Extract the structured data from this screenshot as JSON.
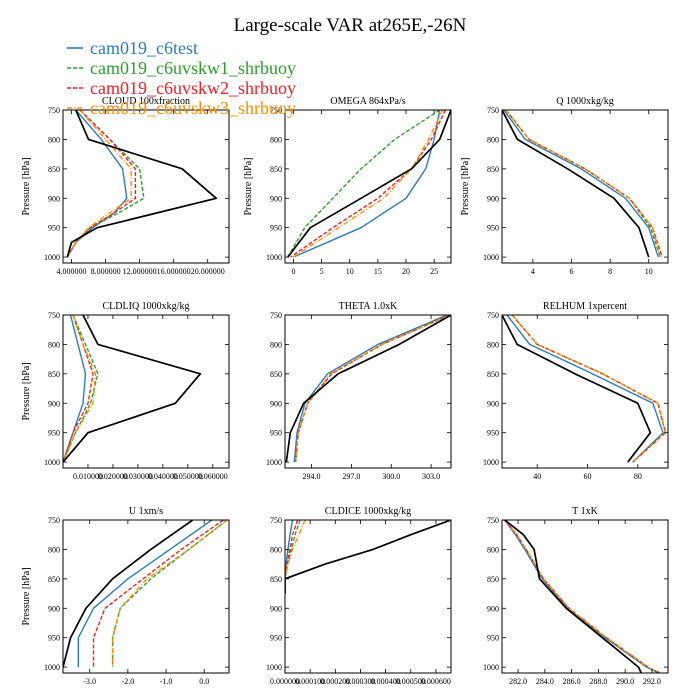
{
  "title": "Large-scale VAR at265E,-26N",
  "colors": {
    "cam019_c6test": "#2a7db8",
    "cam019_c6uvskw1_shrbuoy": "#2ca02c",
    "cam019_c6uvskw2_shrbuoy": "#e8232a",
    "cam019_c6uvskw3_shrbuoy": "#ff8c00",
    "reference": "#000000"
  },
  "legend": [
    {
      "label": "cam019_c6test",
      "color_key": "cam019_c6test",
      "dash": "solid"
    },
    {
      "label": "cam019_c6uvskw1_shrbuoy",
      "color_key": "cam019_c6uvskw1_shrbuoy",
      "dash": "dash"
    },
    {
      "label": "cam019_c6uvskw2_shrbuoy",
      "color_key": "cam019_c6uvskw2_shrbuoy",
      "dash": "dash"
    },
    {
      "label": "cam019_c6uvskw3_shrbuoy",
      "color_key": "cam019_c6uvskw3_shrbuoy",
      "dash": "dashdot"
    }
  ],
  "chart_data": [
    {
      "type": "line",
      "title": "CLOUD 100xfraction",
      "ylabel": "Pressure [hPa]",
      "xlim": [
        0.03,
        0.225
      ],
      "ylim": [
        1010,
        750
      ],
      "xticks": [
        0.04,
        0.08,
        0.12,
        0.16,
        0.2
      ],
      "xtick_labels": [
        "4.000000",
        "8.000000",
        "12.000000",
        "16.000000",
        "20.000000"
      ],
      "yticks": [
        750,
        800,
        850,
        900,
        950,
        1000
      ],
      "y": [
        750,
        800,
        850,
        900,
        925,
        950,
        975,
        1000
      ],
      "series": [
        {
          "name": "cam019_c6test",
          "values": [
            0.045,
            0.075,
            0.1,
            0.105,
            0.09,
            0.065,
            0.045,
            0.035
          ]
        },
        {
          "name": "cam019_c6uvskw1_shrbuoy",
          "values": [
            0.05,
            0.085,
            0.12,
            0.125,
            0.095,
            0.062,
            0.045,
            0.035
          ]
        },
        {
          "name": "cam019_c6uvskw2_shrbuoy",
          "values": [
            0.05,
            0.085,
            0.115,
            0.115,
            0.09,
            0.062,
            0.045,
            0.035
          ]
        },
        {
          "name": "cam019_c6uvskw3_shrbuoy",
          "values": [
            0.05,
            0.08,
            0.11,
            0.11,
            0.085,
            0.06,
            0.045,
            0.035
          ]
        },
        {
          "name": "reference",
          "values": [
            0.045,
            0.06,
            0.17,
            0.21,
            0.14,
            0.07,
            0.04,
            0.035
          ]
        }
      ]
    },
    {
      "type": "line",
      "title": "OMEGA 864xPa/s",
      "ylabel": "Pressure [hPa]",
      "xlim": [
        -1.5,
        28
      ],
      "ylim": [
        1010,
        750
      ],
      "xticks": [
        0,
        5,
        10,
        15,
        20,
        25
      ],
      "xtick_labels": [
        "0",
        "5",
        "10",
        "15",
        "20",
        "25"
      ],
      "yticks": [
        750,
        800,
        850,
        900,
        950,
        1000
      ],
      "y": [
        750,
        800,
        850,
        900,
        950,
        1000
      ],
      "series": [
        {
          "name": "cam019_c6test",
          "values": [
            26,
            25,
            23.5,
            20,
            12,
            0
          ]
        },
        {
          "name": "cam019_c6uvskw1_shrbuoy",
          "values": [
            26,
            18,
            12,
            7,
            2,
            -1
          ]
        },
        {
          "name": "cam019_c6uvskw2_shrbuoy",
          "values": [
            27,
            24.5,
            21,
            15,
            7,
            -0.5
          ]
        },
        {
          "name": "cam019_c6uvskw3_shrbuoy",
          "values": [
            26.5,
            24,
            21,
            16,
            8,
            0
          ]
        },
        {
          "name": "reference",
          "values": [
            28,
            26,
            21,
            12,
            3,
            -1
          ]
        }
      ]
    },
    {
      "type": "line",
      "title": "Q 1000xkg/kg",
      "ylabel": "Pressure [hPa]",
      "xlim": [
        2.4,
        11
      ],
      "ylim": [
        1010,
        750
      ],
      "xticks": [
        4,
        6,
        8,
        10
      ],
      "xtick_labels": [
        "4",
        "6",
        "8",
        "10"
      ],
      "yticks": [
        750,
        800,
        850,
        900,
        950,
        1000
      ],
      "y": [
        750,
        800,
        850,
        900,
        950,
        1000
      ],
      "series": [
        {
          "name": "cam019_c6test",
          "values": [
            2.5,
            3.6,
            6.5,
            8.8,
            10.0,
            10.5
          ]
        },
        {
          "name": "cam019_c6uvskw1_shrbuoy",
          "values": [
            2.6,
            3.8,
            6.7,
            9.0,
            10.1,
            10.6
          ]
        },
        {
          "name": "cam019_c6uvskw2_shrbuoy",
          "values": [
            2.6,
            3.8,
            6.7,
            9.0,
            10.2,
            10.7
          ]
        },
        {
          "name": "cam019_c6uvskw3_shrbuoy",
          "values": [
            2.6,
            3.8,
            6.7,
            9.0,
            10.2,
            10.6
          ]
        },
        {
          "name": "reference",
          "values": [
            2.4,
            3.2,
            5.8,
            8.2,
            9.5,
            10.0
          ]
        }
      ]
    },
    {
      "type": "line",
      "title": "CLDLIQ 1000xkg/kg",
      "ylabel": "Pressure [hPa]",
      "xlim": [
        0,
        0.0665
      ],
      "ylim": [
        1010,
        750
      ],
      "xticks": [
        0.01,
        0.02,
        0.03,
        0.04,
        0.05,
        0.06
      ],
      "xtick_labels": [
        "0.010000",
        "0.020000",
        "0.030000",
        "0.040000",
        "0.050000",
        "0.060000"
      ],
      "yticks": [
        750,
        800,
        850,
        900,
        950,
        1000
      ],
      "y": [
        750,
        800,
        850,
        900,
        950,
        1000
      ],
      "series": [
        {
          "name": "cam019_c6test",
          "values": [
            0.003,
            0.006,
            0.009,
            0.008,
            0.004,
            0.0
          ]
        },
        {
          "name": "cam019_c6uvskw1_shrbuoy",
          "values": [
            0.004,
            0.009,
            0.014,
            0.011,
            0.005,
            0.0
          ]
        },
        {
          "name": "cam019_c6uvskw2_shrbuoy",
          "values": [
            0.004,
            0.008,
            0.012,
            0.01,
            0.004,
            0.0
          ]
        },
        {
          "name": "cam019_c6uvskw3_shrbuoy",
          "values": [
            0.004,
            0.008,
            0.013,
            0.012,
            0.005,
            0.0
          ]
        },
        {
          "name": "reference",
          "values": [
            0.008,
            0.014,
            0.055,
            0.045,
            0.01,
            0.0
          ]
        }
      ]
    },
    {
      "type": "line",
      "title": "THETA 1.0xK",
      "ylabel": "",
      "xlim": [
        292,
        304.5
      ],
      "ylim": [
        1010,
        750
      ],
      "xticks": [
        294,
        297,
        300,
        303
      ],
      "xtick_labels": [
        "294.0",
        "297.0",
        "300.0",
        "303.0"
      ],
      "yticks": [
        750,
        800,
        850,
        900,
        950,
        1000
      ],
      "y": [
        750,
        800,
        850,
        900,
        950,
        1000
      ],
      "series": [
        {
          "name": "cam019_c6test",
          "values": [
            304.2,
            299.0,
            295.2,
            293.5,
            292.9,
            292.7
          ]
        },
        {
          "name": "cam019_c6uvskw1_shrbuoy",
          "values": [
            304.4,
            299.3,
            295.5,
            293.7,
            293.0,
            292.8
          ]
        },
        {
          "name": "cam019_c6uvskw2_shrbuoy",
          "values": [
            304.4,
            299.3,
            295.5,
            293.7,
            293.0,
            292.8
          ]
        },
        {
          "name": "cam019_c6uvskw3_shrbuoy",
          "values": [
            304.4,
            299.3,
            295.4,
            293.7,
            293.0,
            292.8
          ]
        },
        {
          "name": "reference",
          "values": [
            304.5,
            300.6,
            296.0,
            293.4,
            292.4,
            292.1
          ]
        }
      ]
    },
    {
      "type": "line",
      "title": "RELHUM 1xpercent",
      "ylabel": "",
      "xlim": [
        26,
        92
      ],
      "ylim": [
        1010,
        750
      ],
      "xticks": [
        40,
        60,
        80
      ],
      "xtick_labels": [
        "40",
        "60",
        "80"
      ],
      "yticks": [
        750,
        800,
        850,
        900,
        950,
        1000
      ],
      "y": [
        750,
        800,
        850,
        900,
        950,
        1000
      ],
      "series": [
        {
          "name": "cam019_c6test",
          "values": [
            28,
            37,
            62,
            86,
            90,
            78
          ]
        },
        {
          "name": "cam019_c6uvskw1_shrbuoy",
          "values": [
            30,
            40,
            66,
            88,
            91,
            78
          ]
        },
        {
          "name": "cam019_c6uvskw2_shrbuoy",
          "values": [
            30,
            40,
            66,
            88,
            91,
            78
          ]
        },
        {
          "name": "cam019_c6uvskw3_shrbuoy",
          "values": [
            30,
            40,
            66,
            88,
            91,
            78
          ]
        },
        {
          "name": "reference",
          "values": [
            26,
            32,
            55,
            80,
            85,
            76
          ]
        }
      ]
    },
    {
      "type": "line",
      "title": "U 1xm/s",
      "ylabel": "Pressure [hPa]",
      "xlim": [
        -3.7,
        0.65
      ],
      "ylim": [
        1010,
        750
      ],
      "xticks": [
        -3,
        -2,
        -1,
        0
      ],
      "xtick_labels": [
        "-3.0",
        "-2.0",
        "-1.0",
        "0.0"
      ],
      "yticks": [
        750,
        800,
        850,
        900,
        950,
        1000
      ],
      "y": [
        750,
        800,
        850,
        900,
        950,
        1000
      ],
      "series": [
        {
          "name": "cam019_c6test",
          "values": [
            0.2,
            -0.9,
            -2.0,
            -2.9,
            -3.3,
            -3.3
          ]
        },
        {
          "name": "cam019_c6uvskw1_shrbuoy",
          "values": [
            0.6,
            -0.4,
            -1.4,
            -2.2,
            -2.4,
            -2.4
          ]
        },
        {
          "name": "cam019_c6uvskw2_shrbuoy",
          "values": [
            0.5,
            -0.6,
            -1.6,
            -2.6,
            -2.9,
            -2.9
          ]
        },
        {
          "name": "cam019_c6uvskw3_shrbuoy",
          "values": [
            0.6,
            -0.4,
            -1.5,
            -2.2,
            -2.4,
            -2.4
          ]
        },
        {
          "name": "reference",
          "values": [
            -0.3,
            -1.4,
            -2.4,
            -3.1,
            -3.5,
            -3.7
          ]
        }
      ]
    },
    {
      "type": "line",
      "title": "CLDICE 1000xkg/kg",
      "ylabel": "",
      "xlim": [
        0,
        0.00066
      ],
      "ylim": [
        1010,
        750
      ],
      "xticks": [
        0.0,
        0.0001,
        0.0002,
        0.0003,
        0.0004,
        0.0005,
        0.0006
      ],
      "xtick_labels": [
        "0.000000",
        "0.000100",
        "0.000200",
        "0.000300",
        "0.000400",
        "0.000500",
        "0.000600"
      ],
      "yticks": [
        750,
        800,
        850,
        900,
        950,
        1000
      ],
      "y": [
        750,
        775,
        800,
        825,
        850,
        875
      ],
      "series": [
        {
          "name": "cam019_c6test",
          "values": [
            3e-05,
            2e-05,
            1.2e-05,
            4e-06,
            0.0,
            0.0
          ]
        },
        {
          "name": "cam019_c6uvskw1_shrbuoy",
          "values": [
            6e-05,
            4e-05,
            2.5e-05,
            1e-05,
            0.0,
            0.0
          ]
        },
        {
          "name": "cam019_c6uvskw2_shrbuoy",
          "values": [
            5e-05,
            3e-05,
            2e-05,
            8e-06,
            0.0,
            0.0
          ]
        },
        {
          "name": "cam019_c6uvskw3_shrbuoy",
          "values": [
            8e-05,
            5.5e-05,
            3e-05,
            1.2e-05,
            0.0,
            0.0
          ]
        },
        {
          "name": "reference",
          "values": [
            0.00066,
            0.0005,
            0.00035,
            0.00016,
            0.0,
            0.0
          ]
        }
      ]
    },
    {
      "type": "line",
      "title": "T 1xK",
      "ylabel": "",
      "xlim": [
        280.8,
        293.2
      ],
      "ylim": [
        1010,
        750
      ],
      "xticks": [
        282,
        284,
        286,
        288,
        290,
        292
      ],
      "xtick_labels": [
        "282.0",
        "284.0",
        "286.0",
        "288.0",
        "290.0",
        "292.0"
      ],
      "yticks": [
        750,
        800,
        850,
        900,
        950,
        1000
      ],
      "y": [
        750,
        775,
        800,
        850,
        900,
        950,
        1000,
        1010
      ],
      "series": [
        {
          "name": "cam019_c6test",
          "values": [
            281.0,
            281.8,
            282.5,
            283.8,
            285.7,
            288.5,
            291.6,
            292.5
          ]
        },
        {
          "name": "cam019_c6uvskw1_shrbuoy",
          "values": [
            281.0,
            281.9,
            282.6,
            283.9,
            285.8,
            288.6,
            291.7,
            292.6
          ]
        },
        {
          "name": "cam019_c6uvskw2_shrbuoy",
          "values": [
            281.0,
            281.9,
            282.6,
            283.9,
            285.8,
            288.6,
            291.7,
            292.6
          ]
        },
        {
          "name": "cam019_c6uvskw3_shrbuoy",
          "values": [
            281.0,
            281.9,
            282.6,
            283.9,
            285.8,
            288.6,
            291.7,
            292.6
          ]
        },
        {
          "name": "reference",
          "values": [
            281.0,
            282.4,
            283.2,
            283.6,
            285.6,
            288.3,
            291.0,
            291.2
          ]
        }
      ]
    }
  ]
}
